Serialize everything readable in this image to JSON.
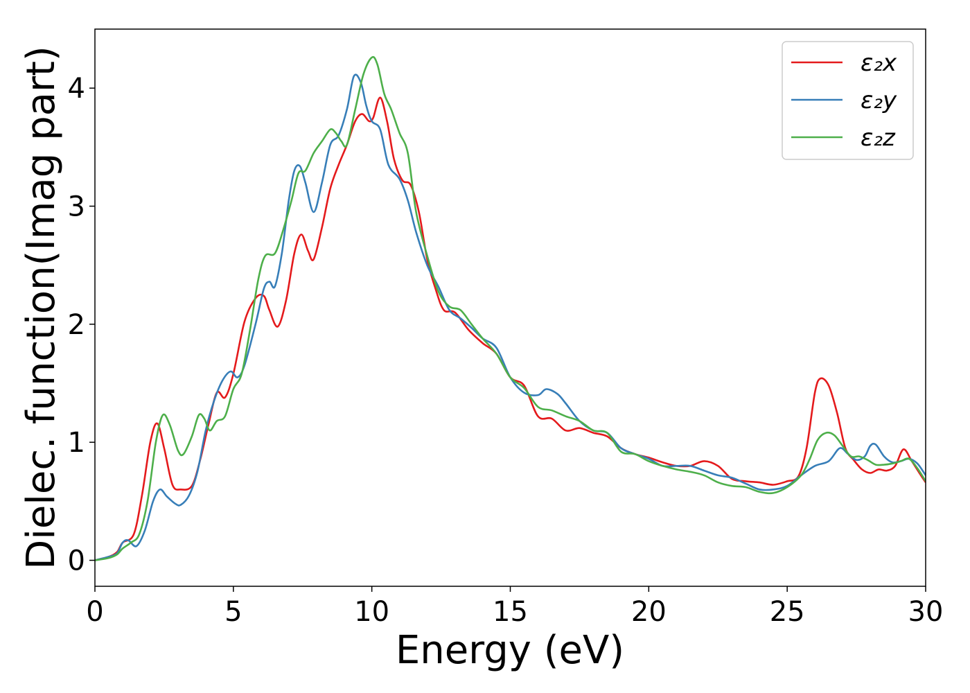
{
  "chart_data": {
    "type": "line",
    "title": "",
    "xlabel": "Energy (eV)",
    "ylabel": "Dielec. function(Imag part)",
    "xlim": [
      0,
      30
    ],
    "ylim": [
      -0.22,
      4.5
    ],
    "xticks": [
      0,
      5,
      10,
      15,
      20,
      25,
      30
    ],
    "xtick_labels": [
      "0",
      "5",
      "10",
      "15",
      "20",
      "25",
      "30"
    ],
    "yticks": [
      0,
      1,
      2,
      3,
      4
    ],
    "ytick_labels": [
      "0",
      "1",
      "2",
      "3",
      "4"
    ],
    "grid": false,
    "legend_position": "top-right",
    "series": [
      {
        "name": "ε₂x",
        "color": "#e41a1c",
        "x": [
          0,
          0.5,
          0.8,
          1.0,
          1.4,
          1.7,
          2.0,
          2.25,
          2.5,
          2.8,
          3.1,
          3.5,
          3.8,
          4.1,
          4.4,
          4.7,
          5.0,
          5.4,
          5.8,
          6.1,
          6.3,
          6.6,
          6.9,
          7.2,
          7.45,
          7.7,
          7.9,
          8.2,
          8.5,
          8.8,
          9.1,
          9.4,
          9.65,
          9.9,
          10.05,
          10.3,
          10.55,
          10.8,
          11.1,
          11.4,
          11.7,
          12.0,
          12.3,
          12.6,
          13.0,
          13.5,
          14.0,
          14.5,
          15.0,
          15.5,
          16.0,
          16.5,
          17.0,
          17.5,
          18.0,
          18.5,
          19.0,
          19.5,
          20.0,
          20.5,
          21.0,
          21.5,
          22.0,
          22.5,
          23.0,
          23.5,
          24.0,
          24.5,
          25.0,
          25.4,
          25.7,
          26.0,
          26.2,
          26.5,
          26.8,
          27.1,
          27.4,
          27.7,
          28.0,
          28.3,
          28.6,
          28.9,
          29.2,
          29.5,
          29.8,
          30.0
        ],
        "y": [
          0,
          0.03,
          0.07,
          0.15,
          0.22,
          0.55,
          1.0,
          1.16,
          0.95,
          0.64,
          0.6,
          0.63,
          0.85,
          1.15,
          1.42,
          1.38,
          1.58,
          2.02,
          2.22,
          2.24,
          2.12,
          1.98,
          2.2,
          2.6,
          2.76,
          2.62,
          2.55,
          2.82,
          3.15,
          3.35,
          3.52,
          3.72,
          3.78,
          3.72,
          3.75,
          3.92,
          3.72,
          3.4,
          3.22,
          3.18,
          2.95,
          2.55,
          2.3,
          2.12,
          2.1,
          1.95,
          1.84,
          1.75,
          1.55,
          1.48,
          1.22,
          1.2,
          1.1,
          1.12,
          1.08,
          1.05,
          0.95,
          0.9,
          0.87,
          0.83,
          0.8,
          0.8,
          0.84,
          0.8,
          0.69,
          0.67,
          0.66,
          0.64,
          0.67,
          0.71,
          0.95,
          1.42,
          1.54,
          1.48,
          1.25,
          0.95,
          0.85,
          0.77,
          0.74,
          0.77,
          0.76,
          0.8,
          0.94,
          0.84,
          0.73,
          0.66
        ]
      },
      {
        "name": "ε₂y",
        "color": "#377eb8",
        "x": [
          0,
          0.5,
          0.8,
          1.0,
          1.2,
          1.5,
          1.8,
          2.1,
          2.35,
          2.6,
          2.9,
          3.1,
          3.4,
          3.7,
          4.0,
          4.3,
          4.6,
          4.9,
          5.15,
          5.4,
          5.8,
          6.1,
          6.3,
          6.5,
          6.75,
          7.0,
          7.2,
          7.4,
          7.6,
          7.9,
          8.2,
          8.5,
          8.8,
          9.1,
          9.35,
          9.6,
          9.8,
          10.0,
          10.3,
          10.6,
          11.0,
          11.3,
          11.6,
          12.0,
          12.4,
          12.8,
          13.2,
          13.6,
          14.0,
          14.5,
          15.0,
          15.5,
          16.0,
          16.3,
          16.7,
          17.0,
          17.5,
          18.0,
          18.5,
          19.0,
          19.5,
          20.0,
          20.5,
          21.0,
          21.5,
          22.0,
          22.5,
          23.0,
          23.5,
          24.0,
          24.5,
          25.0,
          25.5,
          26.0,
          26.5,
          26.9,
          27.2,
          27.5,
          27.8,
          28.0,
          28.2,
          28.5,
          28.8,
          29.1,
          29.4,
          29.7,
          30.0
        ],
        "y": [
          0,
          0.03,
          0.06,
          0.15,
          0.17,
          0.12,
          0.25,
          0.5,
          0.6,
          0.54,
          0.48,
          0.47,
          0.55,
          0.75,
          1.1,
          1.35,
          1.52,
          1.6,
          1.55,
          1.65,
          2.0,
          2.3,
          2.36,
          2.32,
          2.6,
          3.05,
          3.3,
          3.34,
          3.2,
          2.95,
          3.2,
          3.52,
          3.6,
          3.82,
          4.1,
          4.05,
          3.85,
          3.72,
          3.65,
          3.35,
          3.23,
          3.05,
          2.78,
          2.5,
          2.32,
          2.12,
          2.05,
          1.97,
          1.88,
          1.8,
          1.55,
          1.42,
          1.4,
          1.45,
          1.41,
          1.33,
          1.18,
          1.1,
          1.08,
          0.95,
          0.9,
          0.86,
          0.8,
          0.8,
          0.8,
          0.76,
          0.72,
          0.7,
          0.65,
          0.6,
          0.6,
          0.63,
          0.72,
          0.8,
          0.84,
          0.95,
          0.9,
          0.85,
          0.88,
          0.97,
          0.98,
          0.88,
          0.83,
          0.84,
          0.86,
          0.82,
          0.72
        ]
      },
      {
        "name": "ε₂z",
        "color": "#4daf4a",
        "x": [
          0,
          0.5,
          0.8,
          1.0,
          1.3,
          1.6,
          1.9,
          2.2,
          2.45,
          2.7,
          3.0,
          3.2,
          3.5,
          3.75,
          3.95,
          4.15,
          4.4,
          4.7,
          5.0,
          5.3,
          5.6,
          5.9,
          6.15,
          6.5,
          6.8,
          7.1,
          7.35,
          7.6,
          7.9,
          8.2,
          8.5,
          8.7,
          8.9,
          9.1,
          9.4,
          9.7,
          10.0,
          10.2,
          10.45,
          10.7,
          11.0,
          11.3,
          11.6,
          12.0,
          12.4,
          12.8,
          13.2,
          13.6,
          14.0,
          14.5,
          15.0,
          15.5,
          16.0,
          16.5,
          17.0,
          17.5,
          18.0,
          18.5,
          19.0,
          19.5,
          20.0,
          20.5,
          21.0,
          21.5,
          22.0,
          22.5,
          23.0,
          23.5,
          24.0,
          24.5,
          25.0,
          25.5,
          25.8,
          26.1,
          26.4,
          26.7,
          27.0,
          27.3,
          27.6,
          27.9,
          28.2,
          28.5,
          28.8,
          29.1,
          29.4,
          29.7,
          30.0
        ],
        "y": [
          0,
          0.02,
          0.05,
          0.1,
          0.15,
          0.22,
          0.5,
          1.0,
          1.23,
          1.15,
          0.93,
          0.9,
          1.05,
          1.23,
          1.2,
          1.1,
          1.18,
          1.22,
          1.45,
          1.58,
          1.95,
          2.38,
          2.58,
          2.6,
          2.8,
          3.05,
          3.28,
          3.3,
          3.45,
          3.55,
          3.65,
          3.62,
          3.55,
          3.52,
          3.82,
          4.12,
          4.26,
          4.2,
          3.95,
          3.82,
          3.62,
          3.45,
          2.95,
          2.58,
          2.28,
          2.15,
          2.12,
          2.0,
          1.88,
          1.75,
          1.55,
          1.46,
          1.3,
          1.27,
          1.22,
          1.18,
          1.1,
          1.08,
          0.92,
          0.9,
          0.84,
          0.8,
          0.77,
          0.75,
          0.72,
          0.66,
          0.63,
          0.62,
          0.58,
          0.57,
          0.62,
          0.72,
          0.85,
          1.02,
          1.08,
          1.06,
          0.97,
          0.88,
          0.88,
          0.85,
          0.81,
          0.81,
          0.82,
          0.84,
          0.86,
          0.78,
          0.67
        ]
      }
    ]
  }
}
